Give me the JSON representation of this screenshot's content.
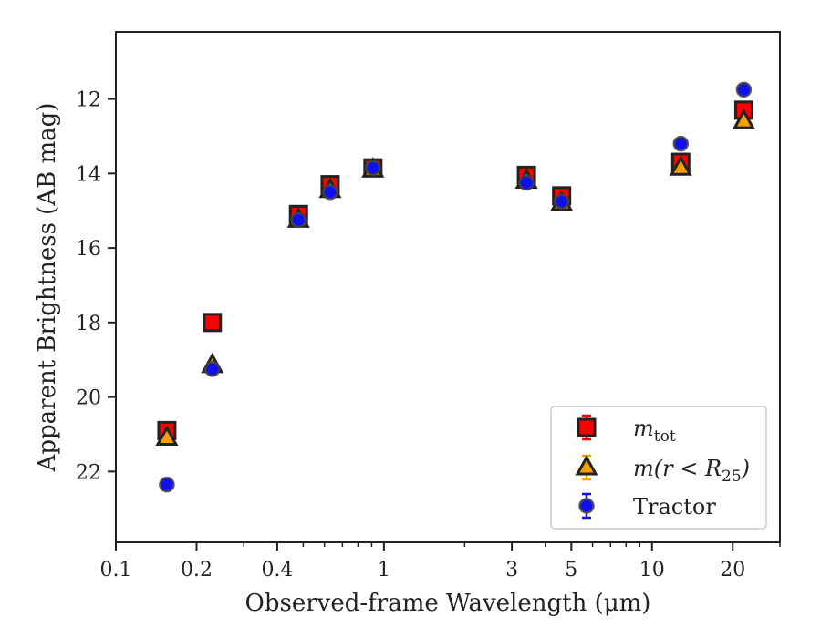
{
  "chart_data": {
    "type": "scatter",
    "xlabel": "Observed-frame Wavelength (μm)",
    "ylabel": "Apparent Brightness (AB mag)",
    "xscale": "log",
    "xlim": [
      0.1,
      30
    ],
    "ylim": [
      23.9,
      10.2
    ],
    "y_inverted": true,
    "xticks": [
      {
        "value": 0.1,
        "label": "0.1"
      },
      {
        "value": 0.2,
        "label": "0.2"
      },
      {
        "value": 0.4,
        "label": "0.4"
      },
      {
        "value": 1,
        "label": "1"
      },
      {
        "value": 3,
        "label": "3"
      },
      {
        "value": 5,
        "label": "5"
      },
      {
        "value": 10,
        "label": "10"
      },
      {
        "value": 20,
        "label": "20"
      }
    ],
    "yticks": [
      12,
      14,
      16,
      18,
      20,
      22
    ],
    "grid": false,
    "legend_position": "lower-right",
    "series": [
      {
        "key": "mtot",
        "marker": "square",
        "color": "#ff0000",
        "edge": "#222222",
        "points": [
          {
            "x": 0.155,
            "y": 20.9
          },
          {
            "x": 0.229,
            "y": 18.0
          },
          {
            "x": 0.48,
            "y": 15.1
          },
          {
            "x": 0.63,
            "y": 14.3
          },
          {
            "x": 0.91,
            "y": 13.85
          },
          {
            "x": 3.4,
            "y": 14.05
          },
          {
            "x": 4.6,
            "y": 14.6
          },
          {
            "x": 12.8,
            "y": 13.7
          },
          {
            "x": 22.0,
            "y": 12.3
          }
        ]
      },
      {
        "key": "mr25",
        "marker": "triangle",
        "color": "#f5a000",
        "edge": "#222222",
        "points": [
          {
            "x": 0.155,
            "y": 21.1
          },
          {
            "x": 0.229,
            "y": 19.15
          },
          {
            "x": 0.48,
            "y": 15.25
          },
          {
            "x": 0.63,
            "y": 14.45
          },
          {
            "x": 0.91,
            "y": 13.9
          },
          {
            "x": 3.4,
            "y": 14.2
          },
          {
            "x": 4.6,
            "y": 14.8
          },
          {
            "x": 12.8,
            "y": 13.85
          },
          {
            "x": 22.0,
            "y": 12.6
          }
        ]
      },
      {
        "key": "tractor",
        "marker": "circle",
        "color": "#1010ee",
        "edge": "#444444",
        "points": [
          {
            "x": 0.155,
            "y": 22.35
          },
          {
            "x": 0.229,
            "y": 19.25
          },
          {
            "x": 0.48,
            "y": 15.25
          },
          {
            "x": 0.63,
            "y": 14.5
          },
          {
            "x": 0.91,
            "y": 13.85
          },
          {
            "x": 3.4,
            "y": 14.25
          },
          {
            "x": 4.6,
            "y": 14.75
          },
          {
            "x": 12.8,
            "y": 13.2
          },
          {
            "x": 22.0,
            "y": 11.75
          }
        ]
      }
    ],
    "legend": [
      {
        "key": "mtot",
        "base": "m",
        "sub": "tot",
        "suffix": ""
      },
      {
        "key": "mr25",
        "base": "m(r < R",
        "sub": "25",
        "suffix": ")"
      },
      {
        "key": "tractor",
        "base": "Tractor",
        "sub": "",
        "suffix": ""
      }
    ]
  }
}
